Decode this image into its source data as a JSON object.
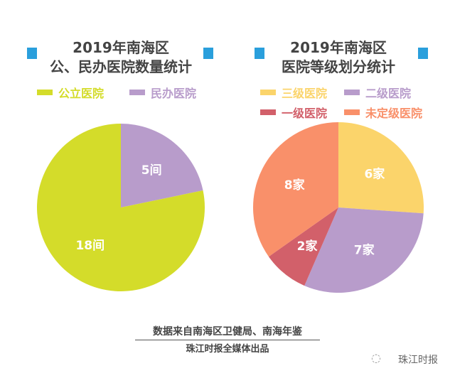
{
  "accent_square_color": "#2a9fdc",
  "chart_data": [
    {
      "type": "pie",
      "title": "2019年南海区\n公、民办医院数量统计",
      "title_lines": [
        "2019年南海区",
        "公、民办医院数量统计"
      ],
      "legend_placement": "top",
      "slices": [
        {
          "name": "民办医院",
          "value": 5,
          "label": "5间",
          "color": "#b89ccb"
        },
        {
          "name": "公立医院",
          "value": 18,
          "label": "18间",
          "color": "#d4dc2a"
        }
      ],
      "legend": [
        {
          "name": "公立医院",
          "color": "#d4dc2a"
        },
        {
          "name": "民办医院",
          "color": "#b89ccb"
        }
      ]
    },
    {
      "type": "pie",
      "title": "2019年南海区\n医院等级划分统计",
      "title_lines": [
        "2019年南海区",
        "医院等级划分统计"
      ],
      "legend_placement": "top",
      "slices": [
        {
          "name": "三级医院",
          "value": 6,
          "label": "6家",
          "color": "#fbd46b"
        },
        {
          "name": "二级医院",
          "value": 7,
          "label": "7家",
          "color": "#b89ccb"
        },
        {
          "name": "一级医院",
          "value": 2,
          "label": "2家",
          "color": "#d2606a"
        },
        {
          "name": "未定级医院",
          "value": 8,
          "label": "8家",
          "color": "#f9906a"
        }
      ],
      "legend": [
        {
          "name": "三级医院",
          "color": "#fbd46b"
        },
        {
          "name": "二级医院",
          "color": "#b89ccb"
        },
        {
          "name": "一级医院",
          "color": "#d2606a"
        },
        {
          "name": "未定级医院",
          "color": "#f9906a"
        }
      ]
    }
  ],
  "footer": {
    "source": "数据来自南海区卫健局、南海年鉴",
    "publisher": "珠江时报全媒体出品",
    "watermark": "珠江时报"
  }
}
